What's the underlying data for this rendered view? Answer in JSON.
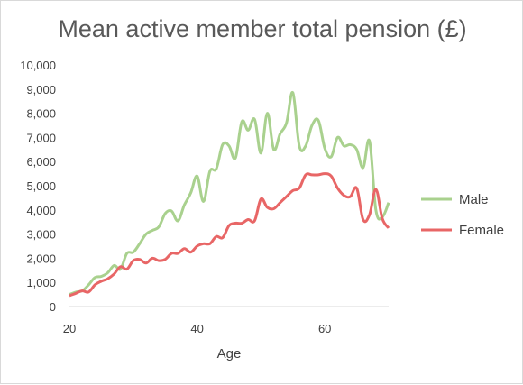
{
  "chart_data": {
    "type": "line",
    "title": "Mean active member total pension (£)",
    "xlabel": "Age",
    "ylabel": "",
    "xlim": [
      20,
      70
    ],
    "ylim": [
      0,
      10000
    ],
    "x_ticks": [
      "20",
      "40",
      "60"
    ],
    "y_ticks": [
      "0",
      "1,000",
      "2,000",
      "3,000",
      "4,000",
      "5,000",
      "6,000",
      "7,000",
      "8,000",
      "9,000",
      "10,000"
    ],
    "legend_position": "right",
    "grid": false,
    "series": [
      {
        "name": "Male",
        "color": "#a9d18e",
        "x": [
          20,
          21,
          22,
          23,
          24,
          25,
          26,
          27,
          28,
          29,
          30,
          31,
          32,
          33,
          34,
          35,
          36,
          37,
          38,
          39,
          40,
          41,
          42,
          43,
          44,
          45,
          46,
          47,
          48,
          49,
          50,
          51,
          52,
          53,
          54,
          55,
          56,
          57,
          58,
          59,
          60,
          61,
          62,
          63,
          64,
          65,
          66,
          67,
          68,
          69,
          70
        ],
        "values": [
          500,
          600,
          650,
          900,
          1200,
          1250,
          1400,
          1700,
          1550,
          2200,
          2250,
          2600,
          3000,
          3150,
          3300,
          3850,
          3950,
          3550,
          4200,
          4700,
          5400,
          4350,
          5600,
          5700,
          6700,
          6650,
          6150,
          7650,
          7300,
          7750,
          6350,
          8000,
          6500,
          7150,
          7600,
          8850,
          6650,
          6650,
          7500,
          7700,
          6550,
          6200,
          7000,
          6650,
          6700,
          6500,
          5750,
          6850,
          4000,
          3700,
          4300
        ]
      },
      {
        "name": "Female",
        "color": "#e86666",
        "x": [
          20,
          21,
          22,
          23,
          24,
          25,
          26,
          27,
          28,
          29,
          30,
          31,
          32,
          33,
          34,
          35,
          36,
          37,
          38,
          39,
          40,
          41,
          42,
          43,
          44,
          45,
          46,
          47,
          48,
          49,
          50,
          51,
          52,
          53,
          54,
          55,
          56,
          57,
          58,
          59,
          60,
          61,
          62,
          63,
          64,
          65,
          66,
          67,
          68,
          69,
          70
        ],
        "values": [
          450,
          550,
          650,
          600,
          900,
          1050,
          1150,
          1350,
          1650,
          1550,
          1900,
          1950,
          1800,
          2000,
          1900,
          1950,
          2200,
          2200,
          2400,
          2250,
          2500,
          2600,
          2600,
          2900,
          2850,
          3350,
          3450,
          3450,
          3600,
          3550,
          4450,
          4100,
          4050,
          4300,
          4550,
          4800,
          4900,
          5450,
          5450,
          5450,
          5500,
          5400,
          4900,
          4600,
          4550,
          4900,
          3600,
          3800,
          4850,
          3650,
          3250
        ]
      }
    ]
  }
}
